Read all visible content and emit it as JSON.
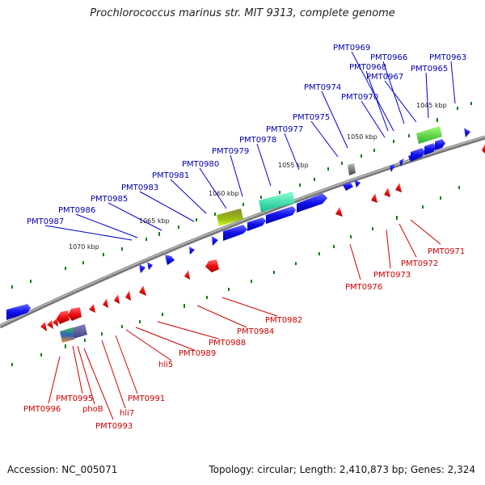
{
  "title": "Prochlorococcus marinus str. MIT 9313, complete genome",
  "footer": {
    "accession": "Accession: NC_005071",
    "summary": "Topology: circular; Length: 2,410,873 bp; Genes: 2,324"
  },
  "colors": {
    "forward_gene": "#0000ee",
    "reverse_gene": "#ee0000",
    "forward_label": "#0000aa",
    "reverse_label": "#cc0000",
    "backbone": "#777777",
    "gc_tick": "#1a7a1a"
  },
  "scale_labels": [
    "1045 kbp",
    "1050 kbp",
    "1055 kbp",
    "1060 kbp",
    "1065 kbp",
    "1070 kbp"
  ],
  "top_labels": [
    "PMT0969",
    "PMT0966",
    "PMT0963",
    "PMT0968",
    "PMT0965",
    "PMT0967",
    "PMT0974",
    "PMT0970",
    "PMT0975",
    "PMT0977",
    "PMT0978",
    "PMT0979",
    "PMT0980",
    "PMT0981",
    "PMT0983",
    "PMT0985",
    "PMT0986",
    "PMT0987"
  ],
  "bottom_labels": [
    "PMT0971",
    "PMT0972",
    "PMT0973",
    "PMT0976",
    "PMT0982",
    "PMT0984",
    "PMT0988",
    "PMT0989",
    "hli5",
    "PMT0991",
    "hli7",
    "PMT0995",
    "phoB",
    "PMT0996",
    "PMT0993"
  ]
}
